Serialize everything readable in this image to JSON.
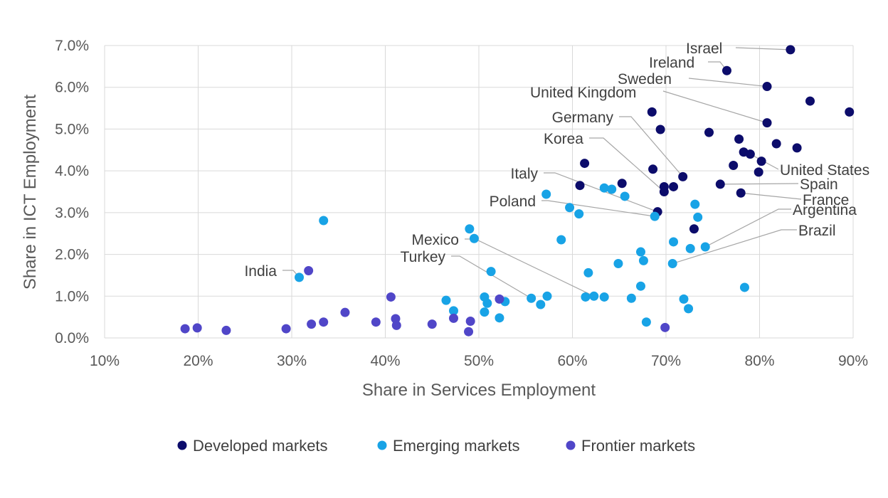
{
  "chart_data": {
    "type": "scatter",
    "title": "",
    "xlabel": "Share in Services Employment",
    "ylabel": "Share in ICT Employment",
    "xlim": [
      10,
      90
    ],
    "ylim": [
      0,
      7
    ],
    "x_ticks": [
      10,
      20,
      30,
      40,
      50,
      60,
      70,
      80,
      90
    ],
    "y_ticks": [
      0,
      1,
      2,
      3,
      4,
      5,
      6,
      7
    ],
    "x_tick_labels": [
      "10%",
      "20%",
      "30%",
      "40%",
      "50%",
      "60%",
      "70%",
      "80%",
      "90%"
    ],
    "y_tick_labels": [
      "0.0%",
      "1.0%",
      "2.0%",
      "3.0%",
      "4.0%",
      "5.0%",
      "6.0%",
      "7.0%"
    ],
    "grid": true,
    "legend_position": "bottom",
    "series": [
      {
        "name": "Developed markets",
        "color": "#0c0c6b",
        "points": [
          [
            83.3,
            6.9
          ],
          [
            76.5,
            6.4
          ],
          [
            80.8,
            6.02
          ],
          [
            85.4,
            5.67
          ],
          [
            89.6,
            5.41
          ],
          [
            68.5,
            5.41
          ],
          [
            80.8,
            5.15
          ],
          [
            69.4,
            4.99
          ],
          [
            74.6,
            4.92
          ],
          [
            77.8,
            4.76
          ],
          [
            81.8,
            4.65
          ],
          [
            84.0,
            4.55
          ],
          [
            78.3,
            4.45
          ],
          [
            79.0,
            4.4
          ],
          [
            80.2,
            4.23
          ],
          [
            61.3,
            4.18
          ],
          [
            77.2,
            4.13
          ],
          [
            68.6,
            4.04
          ],
          [
            79.9,
            3.97
          ],
          [
            71.8,
            3.86
          ],
          [
            65.3,
            3.7
          ],
          [
            60.8,
            3.65
          ],
          [
            75.8,
            3.68
          ],
          [
            69.8,
            3.62
          ],
          [
            70.8,
            3.62
          ],
          [
            69.8,
            3.5
          ],
          [
            78.0,
            3.47
          ],
          [
            69.1,
            3.02
          ],
          [
            73.0,
            2.61
          ]
        ]
      },
      {
        "name": "Emerging markets",
        "color": "#18a3e6",
        "points": [
          [
            33.4,
            2.81
          ],
          [
            57.2,
            3.44
          ],
          [
            63.4,
            3.59
          ],
          [
            64.2,
            3.56
          ],
          [
            65.6,
            3.39
          ],
          [
            59.7,
            3.12
          ],
          [
            60.7,
            2.97
          ],
          [
            68.8,
            2.91
          ],
          [
            73.4,
            2.89
          ],
          [
            73.1,
            3.2
          ],
          [
            49.0,
            2.61
          ],
          [
            49.5,
            2.38
          ],
          [
            58.8,
            2.35
          ],
          [
            70.8,
            2.3
          ],
          [
            74.2,
            2.18
          ],
          [
            72.6,
            2.14
          ],
          [
            67.3,
            2.06
          ],
          [
            67.6,
            1.85
          ],
          [
            64.9,
            1.78
          ],
          [
            70.7,
            1.78
          ],
          [
            51.3,
            1.59
          ],
          [
            61.7,
            1.56
          ],
          [
            30.8,
            1.45
          ],
          [
            67.3,
            1.24
          ],
          [
            78.4,
            1.21
          ],
          [
            50.6,
            0.98
          ],
          [
            55.6,
            0.95
          ],
          [
            57.3,
            1.0
          ],
          [
            61.4,
            0.98
          ],
          [
            62.3,
            1.0
          ],
          [
            63.4,
            0.98
          ],
          [
            66.3,
            0.95
          ],
          [
            71.9,
            0.93
          ],
          [
            46.5,
            0.9
          ],
          [
            50.9,
            0.83
          ],
          [
            52.8,
            0.87
          ],
          [
            56.6,
            0.8
          ],
          [
            72.4,
            0.7
          ],
          [
            47.3,
            0.65
          ],
          [
            50.6,
            0.62
          ],
          [
            52.2,
            0.48
          ],
          [
            67.9,
            0.38
          ]
        ]
      },
      {
        "name": "Frontier markets",
        "color": "#5046c8",
        "points": [
          [
            31.8,
            1.61
          ],
          [
            40.6,
            0.98
          ],
          [
            52.2,
            0.93
          ],
          [
            35.7,
            0.61
          ],
          [
            47.3,
            0.47
          ],
          [
            41.1,
            0.46
          ],
          [
            33.4,
            0.38
          ],
          [
            39.0,
            0.38
          ],
          [
            49.1,
            0.4
          ],
          [
            32.1,
            0.33
          ],
          [
            45.0,
            0.33
          ],
          [
            41.2,
            0.3
          ],
          [
            18.6,
            0.22
          ],
          [
            19.9,
            0.24
          ],
          [
            29.4,
            0.22
          ],
          [
            23.0,
            0.18
          ],
          [
            48.9,
            0.15
          ],
          [
            69.9,
            0.25
          ]
        ]
      }
    ],
    "annotations": [
      {
        "label": "Israel",
        "point": [
          83.3,
          6.9
        ]
      },
      {
        "label": "Ireland",
        "point": [
          76.5,
          6.4
        ]
      },
      {
        "label": "Sweden",
        "point": [
          80.8,
          6.02
        ]
      },
      {
        "label": "United Kingdom",
        "point": [
          80.8,
          5.15
        ]
      },
      {
        "label": "Germany",
        "point": [
          71.8,
          3.86
        ]
      },
      {
        "label": "Korea",
        "point": [
          69.8,
          3.5
        ]
      },
      {
        "label": "Italy",
        "point": [
          69.1,
          3.02
        ]
      },
      {
        "label": "Poland",
        "point": [
          68.8,
          2.91
        ]
      },
      {
        "label": "Mexico",
        "point": [
          62.3,
          1.0
        ]
      },
      {
        "label": "Turkey",
        "point": [
          55.6,
          0.95
        ]
      },
      {
        "label": "India",
        "point": [
          30.8,
          1.45
        ]
      },
      {
        "label": "United States",
        "point": [
          79.0,
          4.4
        ]
      },
      {
        "label": "Spain",
        "point": [
          75.8,
          3.68
        ]
      },
      {
        "label": "France",
        "point": [
          78.0,
          3.47
        ]
      },
      {
        "label": "Argentina",
        "point": [
          74.2,
          2.18
        ]
      },
      {
        "label": "Brazil",
        "point": [
          70.7,
          1.78
        ]
      }
    ]
  }
}
